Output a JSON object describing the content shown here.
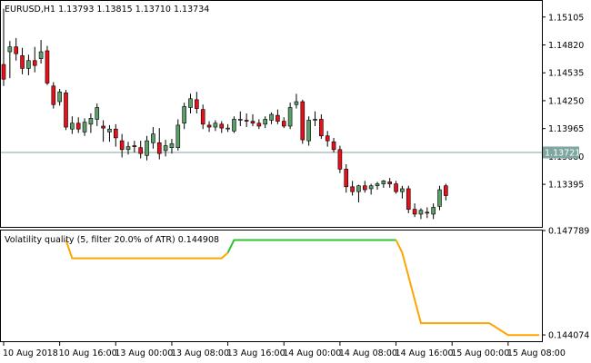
{
  "symbol_header": "EURUSD,H1  1.13793 1.13815 1.13710 1.13734",
  "indicator_header": "Volatility quality (5, filter 20.0% of ATR) 0.144908",
  "current_price_label": "1.13721",
  "colors": {
    "bull": "#5a9e6a",
    "bear": "#e8101a",
    "vq_up": "#30c030",
    "vq_down": "#ffa500",
    "price_line": "#7fa6a0",
    "price_tag_bg": "#7fa6a0",
    "frame": "#000000"
  },
  "chart_data": [
    {
      "type": "candlestick",
      "title": "EURUSD,H1",
      "y_ticks": [
        "1.15105",
        "1.14820",
        "1.14535",
        "1.14250",
        "1.13965",
        "1.13680",
        "1.13395"
      ],
      "ylim": [
        1.1296,
        1.1527
      ],
      "current_price": 1.13721,
      "ohlc": [
        [
          1.1462,
          1.1519,
          1.144,
          1.1447
        ],
        [
          1.1475,
          1.1486,
          1.1448,
          1.148
        ],
        [
          1.148,
          1.1489,
          1.1466,
          1.1473
        ],
        [
          1.1471,
          1.1479,
          1.1452,
          1.1458
        ],
        [
          1.1458,
          1.1472,
          1.1451,
          1.1466
        ],
        [
          1.1466,
          1.148,
          1.1454,
          1.1461
        ],
        [
          1.1468,
          1.1487,
          1.1463,
          1.1475
        ],
        [
          1.1476,
          1.1481,
          1.1441,
          1.1443
        ],
        [
          1.144,
          1.1444,
          1.1417,
          1.1421
        ],
        [
          1.1424,
          1.1437,
          1.142,
          1.1434
        ],
        [
          1.1433,
          1.1436,
          1.1395,
          1.1398
        ],
        [
          1.1396,
          1.1409,
          1.1391,
          1.1402
        ],
        [
          1.1402,
          1.1408,
          1.1392,
          1.1396
        ],
        [
          1.1393,
          1.1407,
          1.1389,
          1.1403
        ],
        [
          1.1401,
          1.1412,
          1.1392,
          1.1407
        ],
        [
          1.1406,
          1.1422,
          1.1399,
          1.1418
        ],
        [
          1.1399,
          1.1405,
          1.1383,
          1.1397
        ],
        [
          1.1393,
          1.14,
          1.1383,
          1.1396
        ],
        [
          1.1396,
          1.1401,
          1.1378,
          1.1387
        ],
        [
          1.1384,
          1.1391,
          1.1367,
          1.1375
        ],
        [
          1.1375,
          1.1383,
          1.137,
          1.1378
        ],
        [
          1.1379,
          1.1384,
          1.1372,
          1.1378
        ],
        [
          1.1377,
          1.1384,
          1.1366,
          1.1371
        ],
        [
          1.1369,
          1.1389,
          1.1364,
          1.1384
        ],
        [
          1.1382,
          1.1398,
          1.1376,
          1.1391
        ],
        [
          1.1382,
          1.1397,
          1.1365,
          1.1371
        ],
        [
          1.1374,
          1.1385,
          1.1368,
          1.1379
        ],
        [
          1.1377,
          1.1386,
          1.1371,
          1.1381
        ],
        [
          1.1377,
          1.1406,
          1.1374,
          1.14
        ],
        [
          1.1402,
          1.1423,
          1.1396,
          1.1419
        ],
        [
          1.1418,
          1.1432,
          1.1412,
          1.1427
        ],
        [
          1.1426,
          1.1434,
          1.1412,
          1.1417
        ],
        [
          1.1416,
          1.1421,
          1.1396,
          1.1401
        ],
        [
          1.14,
          1.1404,
          1.1393,
          1.1398
        ],
        [
          1.1398,
          1.1405,
          1.1394,
          1.1402
        ],
        [
          1.1401,
          1.1404,
          1.1392,
          1.1397
        ],
        [
          1.1397,
          1.1401,
          1.1393,
          1.1397
        ],
        [
          1.1394,
          1.1409,
          1.1392,
          1.1406
        ],
        [
          1.1405,
          1.1414,
          1.1399,
          1.1406
        ],
        [
          1.1405,
          1.1412,
          1.1398,
          1.1404
        ],
        [
          1.1404,
          1.1411,
          1.1399,
          1.1402
        ],
        [
          1.1402,
          1.1406,
          1.1396,
          1.1399
        ],
        [
          1.1401,
          1.1409,
          1.1397,
          1.1406
        ],
        [
          1.1405,
          1.1413,
          1.1401,
          1.1411
        ],
        [
          1.141,
          1.1416,
          1.1401,
          1.1404
        ],
        [
          1.1404,
          1.1408,
          1.1397,
          1.1399
        ],
        [
          1.1399,
          1.1423,
          1.1396,
          1.1418
        ],
        [
          1.1421,
          1.1432,
          1.1417,
          1.1424
        ],
        [
          1.1424,
          1.1426,
          1.1381,
          1.1385
        ],
        [
          1.1384,
          1.1409,
          1.1379,
          1.1405
        ],
        [
          1.1405,
          1.1414,
          1.1399,
          1.1406
        ],
        [
          1.1406,
          1.1411,
          1.1386,
          1.1389
        ],
        [
          1.1389,
          1.1394,
          1.1378,
          1.1384
        ],
        [
          1.1383,
          1.1387,
          1.1372,
          1.1375
        ],
        [
          1.1375,
          1.1379,
          1.1351,
          1.1355
        ],
        [
          1.1355,
          1.136,
          1.1331,
          1.1337
        ],
        [
          1.1337,
          1.1343,
          1.1328,
          1.1332
        ],
        [
          1.1332,
          1.1339,
          1.1321,
          1.1338
        ],
        [
          1.1338,
          1.1343,
          1.1331,
          1.1334
        ],
        [
          1.1335,
          1.134,
          1.1329,
          1.1338
        ],
        [
          1.1338,
          1.1342,
          1.1334,
          1.134
        ],
        [
          1.134,
          1.1344,
          1.1336,
          1.1343
        ],
        [
          1.1342,
          1.1346,
          1.1336,
          1.134
        ],
        [
          1.134,
          1.1343,
          1.133,
          1.1332
        ],
        [
          1.1332,
          1.1338,
          1.1325,
          1.1335
        ],
        [
          1.1335,
          1.1338,
          1.131,
          1.1314
        ],
        [
          1.1314,
          1.132,
          1.1306,
          1.1309
        ],
        [
          1.1309,
          1.1315,
          1.1304,
          1.1313
        ],
        [
          1.1311,
          1.1316,
          1.1305,
          1.131
        ],
        [
          1.1309,
          1.132,
          1.1304,
          1.1316
        ],
        [
          1.1317,
          1.1338,
          1.1313,
          1.1334
        ],
        [
          1.1338,
          1.134,
          1.1323,
          1.1328
        ]
      ]
    },
    {
      "type": "line",
      "title": "Volatility quality (5, filter 20.0% of ATR) 0.144908",
      "y_ticks": [
        "0.147789",
        "0.144074"
      ],
      "ylim": [
        0.14385,
        0.14779
      ],
      "segments": [
        {
          "color": "vq_down",
          "points": [
            [
              10,
              0.14745
            ],
            [
              11,
              0.1468
            ],
            [
              35,
              0.1468
            ],
            [
              36,
              0.147
            ]
          ]
        },
        {
          "color": "vq_up",
          "points": [
            [
              36,
              0.147
            ],
            [
              37,
              0.14745
            ],
            [
              63,
              0.14745
            ]
          ]
        },
        {
          "color": "vq_down",
          "points": [
            [
              63,
              0.14745
            ],
            [
              64,
              0.147
            ],
            [
              67,
              0.14449
            ],
            [
              78,
              0.14449
            ],
            [
              81,
              0.14407
            ],
            [
              86,
              0.14407
            ]
          ]
        }
      ],
      "x_tick_labels": [
        {
          "bar": 0,
          "label": "10 Aug 2018"
        },
        {
          "bar": 9,
          "label": "10 Aug 16:00"
        },
        {
          "bar": 18,
          "label": "13 Aug 00:00"
        },
        {
          "bar": 27,
          "label": "13 Aug 08:00"
        },
        {
          "bar": 36,
          "label": "13 Aug 16:00"
        },
        {
          "bar": 45,
          "label": "14 Aug 00:00"
        },
        {
          "bar": 54,
          "label": "14 Aug 08:00"
        },
        {
          "bar": 63,
          "label": "14 Aug 16:00"
        },
        {
          "bar": 72,
          "label": "15 Aug 00:00"
        },
        {
          "bar": 81,
          "label": "15 Aug 08:00"
        }
      ]
    }
  ]
}
